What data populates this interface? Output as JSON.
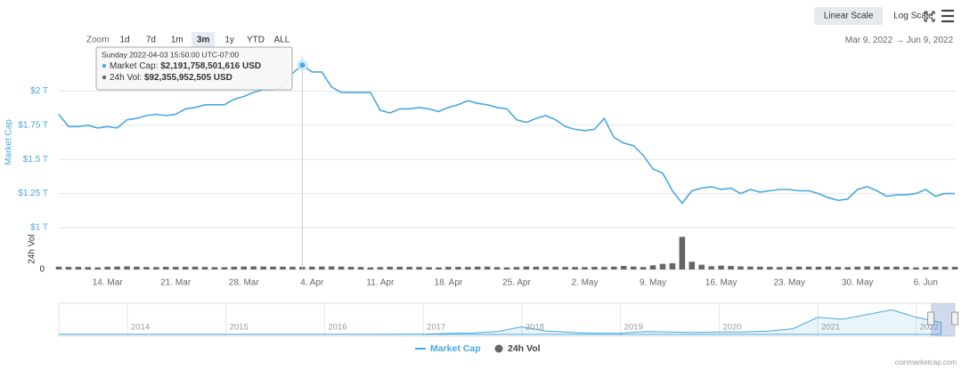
{
  "toolbar": {
    "scale_buttons": [
      {
        "label": "Linear Scale",
        "active": true
      },
      {
        "label": "Log Scale",
        "active": false
      }
    ]
  },
  "range_selector": {
    "label": "Zoom",
    "buttons": [
      {
        "label": "1d",
        "active": false
      },
      {
        "label": "7d",
        "active": false
      },
      {
        "label": "1m",
        "active": false
      },
      {
        "label": "3m",
        "active": true
      },
      {
        "label": "1y",
        "active": false
      },
      {
        "label": "YTD",
        "active": false
      },
      {
        "label": "ALL",
        "active": false
      }
    ]
  },
  "date_range": {
    "from": "Mar 9, 2022",
    "arrow": "→",
    "to": "Jun 9, 2022"
  },
  "tooltip": {
    "date": "Sunday 2022-04-03 15:50:00 UTC-07:00",
    "rows": [
      {
        "name": "Market Cap:",
        "value": "$2,191,758,501,616 USD"
      },
      {
        "name": "24h Vol:",
        "value": "$92,355,952,505 USD"
      }
    ]
  },
  "chart_data": [
    {
      "type": "line",
      "y_title": "Market Cap",
      "y2_title": "24h Vol",
      "categories": [
        null,
        null,
        null,
        null,
        null,
        "14. Mar",
        null,
        null,
        null,
        null,
        null,
        null,
        "21. Mar",
        null,
        null,
        null,
        null,
        null,
        null,
        "28. Mar",
        null,
        null,
        null,
        null,
        null,
        null,
        "4. Apr",
        null,
        null,
        null,
        null,
        null,
        null,
        "11. Apr",
        null,
        null,
        null,
        null,
        null,
        null,
        "18. Apr",
        null,
        null,
        null,
        null,
        null,
        null,
        "25. Apr",
        null,
        null,
        null,
        null,
        null,
        null,
        "2. May",
        null,
        null,
        null,
        null,
        null,
        null,
        "9. May",
        null,
        null,
        null,
        null,
        null,
        null,
        "16. May",
        null,
        null,
        null,
        null,
        null,
        null,
        "23. May",
        null,
        null,
        null,
        null,
        null,
        null,
        "30. May",
        null,
        null,
        null,
        null,
        null,
        null,
        "6. Jun",
        null,
        null,
        null
      ],
      "series": [
        {
          "name": "Market Cap",
          "color": "#4aa8e0",
          "axis": "y",
          "values": [
            1.83,
            1.74,
            1.74,
            1.75,
            1.73,
            1.74,
            1.73,
            1.79,
            1.8,
            1.82,
            1.83,
            1.82,
            1.83,
            1.87,
            1.88,
            1.9,
            1.9,
            1.9,
            1.94,
            1.96,
            1.99,
            2.01,
            2.01,
            2.03,
            2.13,
            2.19,
            2.14,
            2.14,
            2.03,
            1.99,
            1.99,
            1.99,
            1.99,
            1.86,
            1.84,
            1.87,
            1.87,
            1.88,
            1.87,
            1.85,
            1.88,
            1.9,
            1.93,
            1.91,
            1.9,
            1.88,
            1.87,
            1.79,
            1.77,
            1.8,
            1.82,
            1.79,
            1.74,
            1.72,
            1.71,
            1.72,
            1.8,
            1.66,
            1.62,
            1.6,
            1.53,
            1.43,
            1.4,
            1.27,
            1.18,
            1.27,
            1.29,
            1.3,
            1.28,
            1.29,
            1.25,
            1.28,
            1.26,
            1.27,
            1.28,
            1.28,
            1.27,
            1.27,
            1.25,
            1.22,
            1.2,
            1.21,
            1.28,
            1.3,
            1.27,
            1.23,
            1.24,
            1.24,
            1.25,
            1.28,
            1.23,
            1.25,
            1.25
          ]
        },
        {
          "name": "24h Vol",
          "color": "#666666",
          "axis": "y2",
          "values": [
            95,
            88,
            90,
            80,
            70,
            92,
            100,
            105,
            98,
            85,
            80,
            90,
            88,
            92,
            95,
            87,
            80,
            78,
            94,
            100,
            105,
            102,
            98,
            95,
            92,
            88,
            96,
            100,
            104,
            98,
            90,
            84,
            70,
            80,
            94,
            92,
            88,
            85,
            78,
            72,
            90,
            88,
            86,
            96,
            98,
            80,
            70,
            82,
            100,
            94,
            96,
            92,
            86,
            84,
            80,
            88,
            86,
            98,
            120,
            100,
            85,
            140,
            190,
            210,
            1100,
            260,
            160,
            110,
            130,
            120,
            105,
            100,
            95,
            88,
            80,
            92,
            98,
            96,
            92,
            100,
            86,
            80,
            95,
            104,
            100,
            92,
            96,
            88,
            70,
            78,
            96,
            94,
            90
          ]
        }
      ],
      "ylim": [
        1,
        2.25
      ],
      "yticks": [
        {
          "value": 1,
          "label": "$1 T"
        },
        {
          "value": 1.25,
          "label": "$1.25 T"
        },
        {
          "value": 1.5,
          "label": "$1.5 T"
        },
        {
          "value": 1.75,
          "label": "$1.75 T"
        },
        {
          "value": 2,
          "label": "$2 T"
        }
      ],
      "y2lim": [
        0,
        1200
      ],
      "y2ticks": [
        0
      ],
      "grid": true
    },
    {
      "type": "area",
      "color": "#4aa8e0",
      "categories": [
        null,
        null,
        null,
        "2014",
        null,
        null,
        null,
        "2015",
        null,
        null,
        null,
        "2016",
        null,
        null,
        null,
        "2017",
        null,
        null,
        null,
        "2018",
        null,
        null,
        null,
        "2019",
        null,
        null,
        null,
        "2020",
        null,
        null,
        null,
        "2021",
        null,
        null,
        null,
        "2022",
        null
      ],
      "values": [
        0.01,
        0.01,
        0.01,
        0.01,
        0.01,
        0.01,
        0.01,
        0.01,
        0.01,
        0.01,
        0.01,
        0.01,
        0.01,
        0.01,
        0.02,
        0.03,
        0.1,
        0.15,
        0.3,
        0.8,
        0.35,
        0.22,
        0.12,
        0.13,
        0.3,
        0.25,
        0.2,
        0.25,
        0.25,
        0.35,
        0.6,
        1.8,
        1.6,
        2.1,
        2.6,
        1.8,
        1.25
      ],
      "ylim": [
        0,
        3
      ]
    }
  ],
  "watermark": "coinmarketcap.com"
}
